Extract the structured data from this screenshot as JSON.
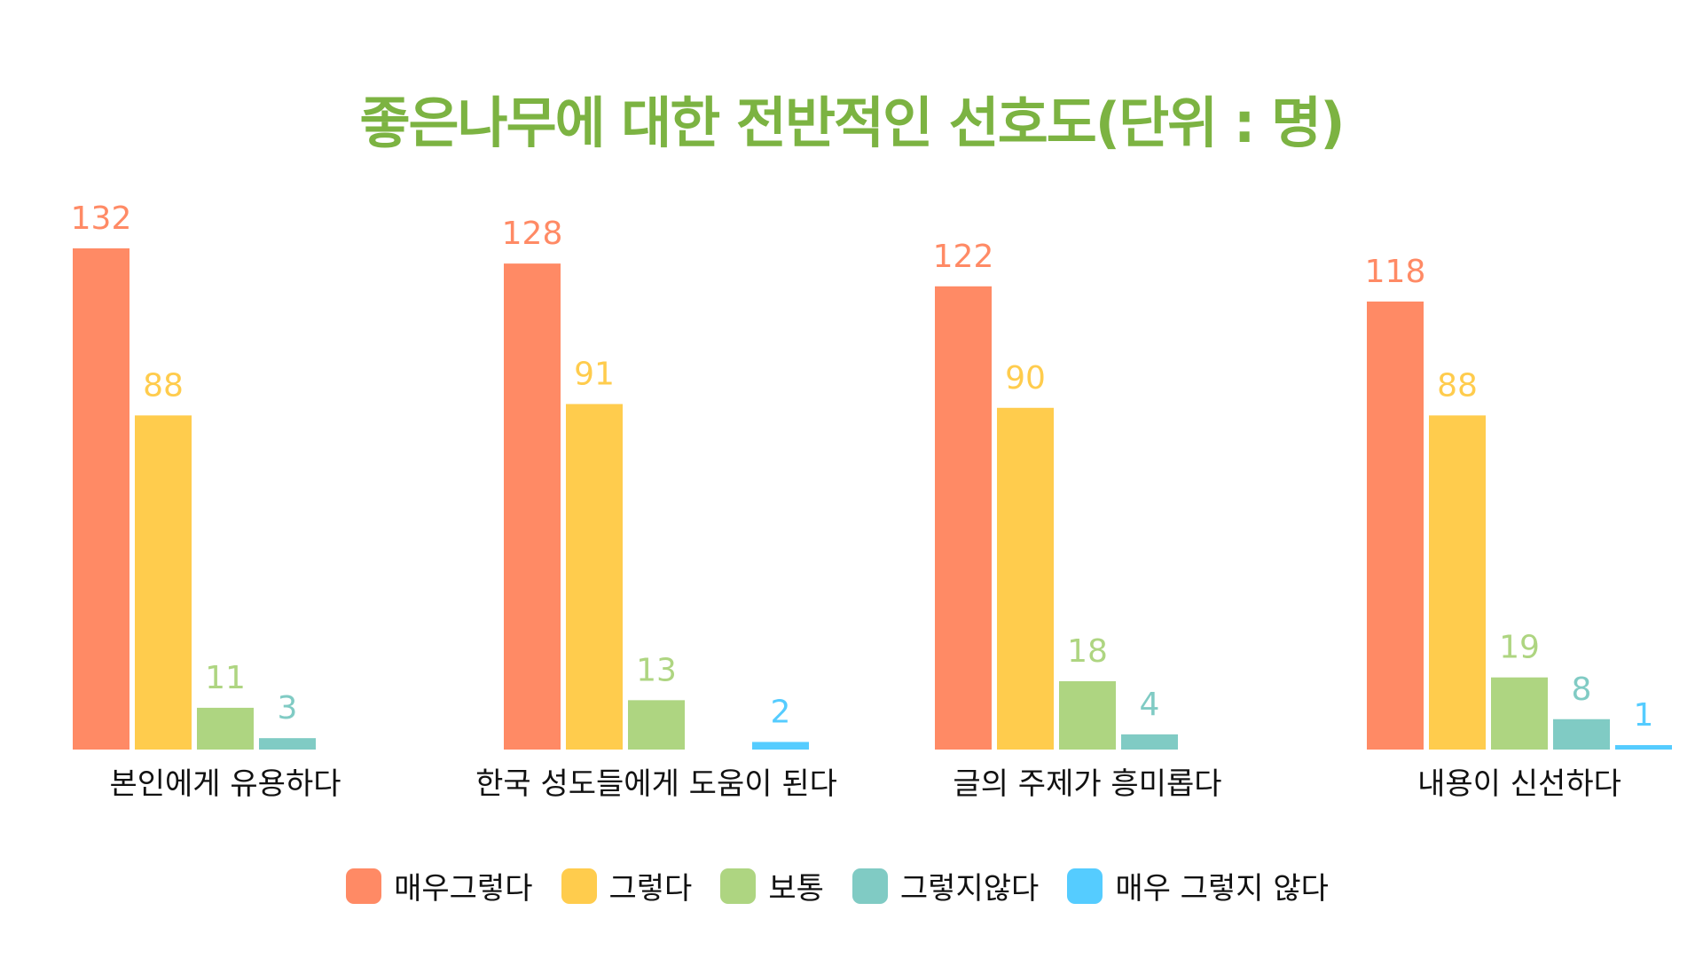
{
  "chart_data": {
    "type": "bar",
    "title": "좋은나무에 대한 전반적인 선호도(단위 : 명)",
    "xlabel": "",
    "ylabel": "",
    "ylim": [
      0,
      132
    ],
    "grid": false,
    "legend_position": "bottom",
    "categories": [
      "본인에게 유용하다",
      "한국 성도들에게 도움이 된다",
      "글의 주제가 흥미롭다",
      "내용이 신선하다"
    ],
    "series": [
      {
        "name": "매우그렇다",
        "color": "#ff8a65",
        "values": [
          132,
          128,
          122,
          118
        ]
      },
      {
        "name": "그렇다",
        "color": "#ffcc4d",
        "values": [
          88,
          91,
          90,
          88
        ]
      },
      {
        "name": "보통",
        "color": "#aed581",
        "values": [
          11,
          13,
          18,
          19
        ]
      },
      {
        "name": "그렇지않다",
        "color": "#80cbc4",
        "values": [
          3,
          null,
          4,
          8
        ]
      },
      {
        "name": "매우 그렇지 않다",
        "color": "#55ccff",
        "values": [
          null,
          2,
          null,
          1
        ]
      }
    ]
  }
}
